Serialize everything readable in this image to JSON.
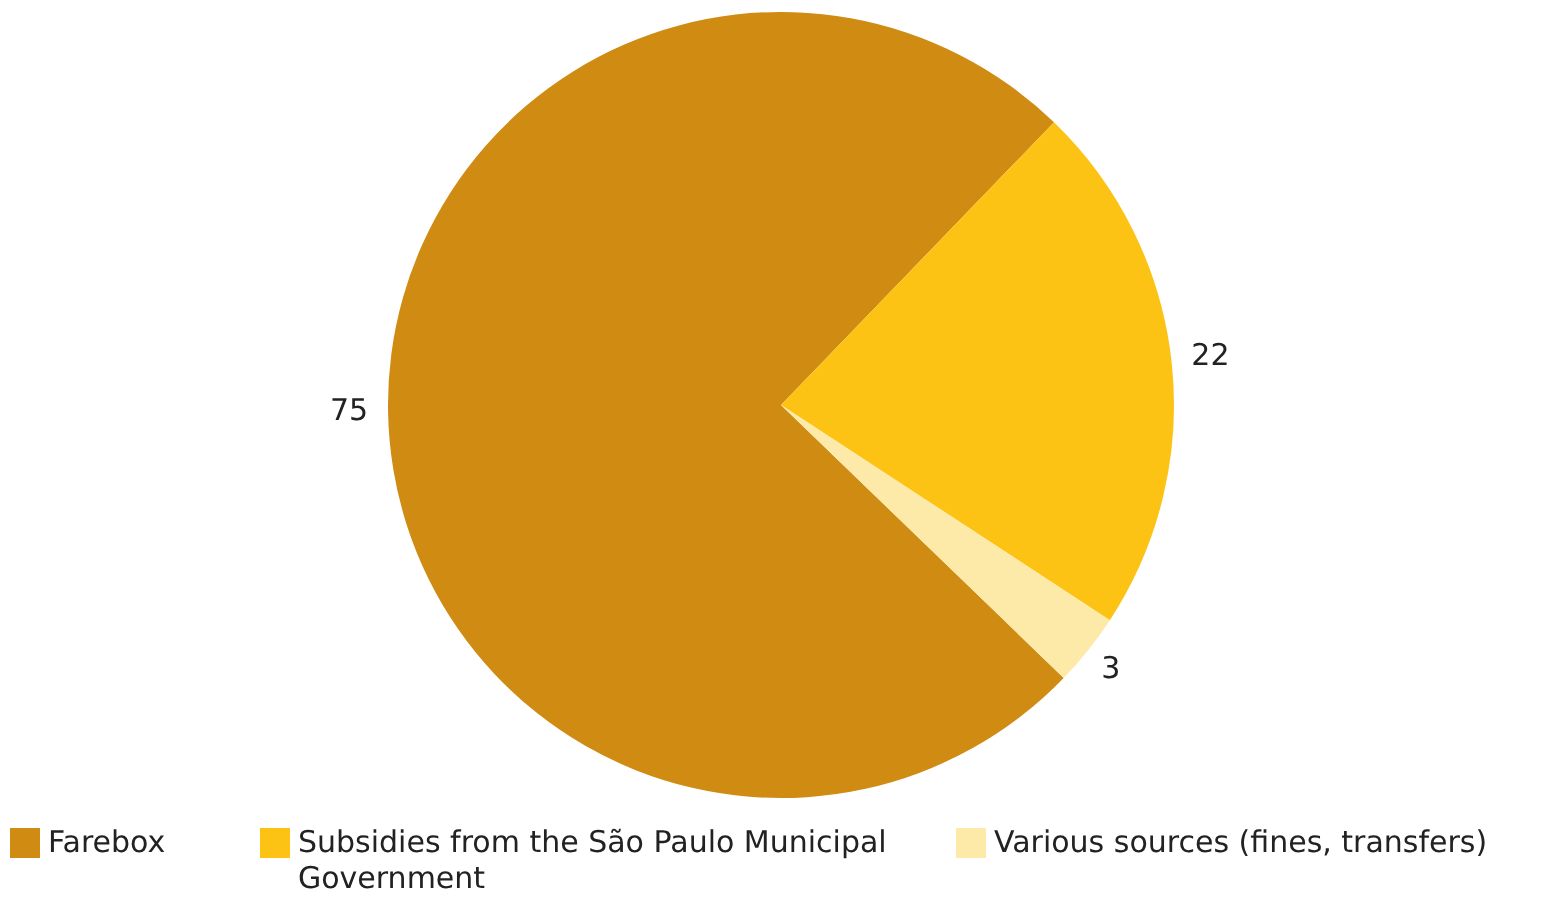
{
  "chart_data": {
    "type": "pie",
    "categories": [
      "Farebox",
      "Subsidies from the São Paulo Municipal Government",
      "Various sources (fines, transfers)"
    ],
    "values": [
      75,
      22,
      3
    ],
    "colors": [
      "#cf8b12",
      "#fdc314",
      "#fde9a8"
    ],
    "data_labels": true,
    "legend": "bottom"
  }
}
